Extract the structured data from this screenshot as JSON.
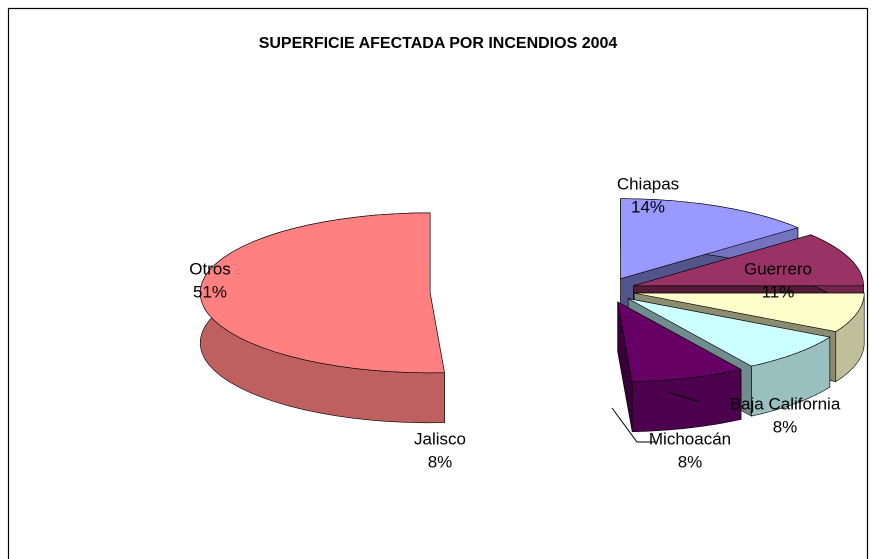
{
  "chart_data": {
    "type": "pie",
    "title": "SUPERFICIE AFECTADA POR INCENDIOS 2004",
    "categories": [
      "Chiapas",
      "Guerrero",
      "Baja California",
      "Michoacán",
      "Jalisco",
      "Otros"
    ],
    "values": [
      14,
      11,
      8,
      8,
      8,
      51
    ],
    "value_labels": [
      "14%",
      "11%",
      "8%",
      "8%",
      "8%",
      "51%"
    ],
    "colors": [
      "#9999ff",
      "#993366",
      "#ffffcc",
      "#ccffff",
      "#660066",
      "#ff8080"
    ]
  }
}
